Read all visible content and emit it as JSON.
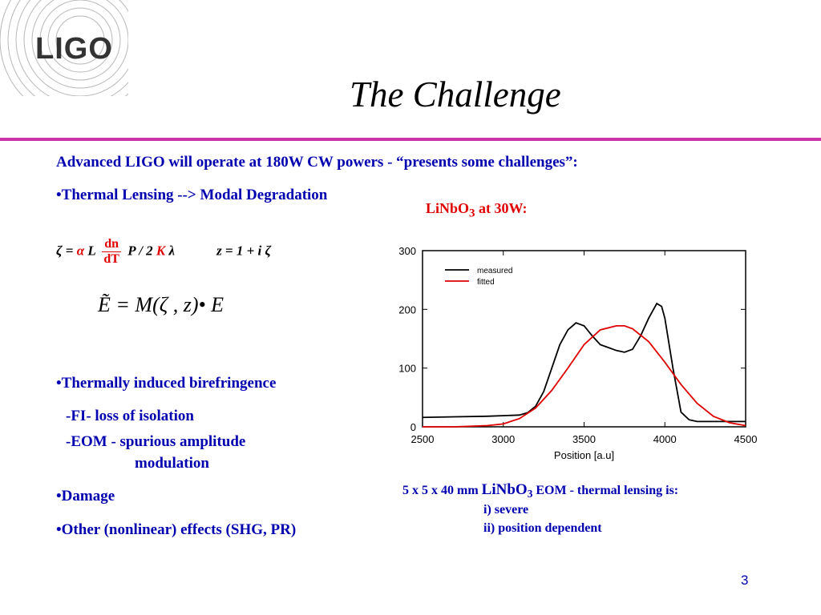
{
  "logo": {
    "text": "LIGO"
  },
  "title": "The Challenge",
  "accent_color": "#cc33aa",
  "text_color_blue": "#0000b0",
  "text_color_red": "#e00000",
  "intro": "Advanced LIGO will operate at 180W CW powers - “presents some challenges”:",
  "bullets": {
    "thermal_lensing": "•Thermal Lensing --> Modal Degradation",
    "birefringence": "•Thermally induced birefringence",
    "fi": "-FI- loss of isolation",
    "eom_line1": "-EOM - spurious amplitude",
    "eom_line2": "modulation",
    "damage": "•Damage",
    "other": "•Other (nonlinear) effects (SHG, PR)"
  },
  "equation1": {
    "lhs": "ζ = ",
    "alpha": "α",
    "L": " L ",
    "frac_num": "dn",
    "frac_den": "dT",
    "mid": " P / 2 ",
    "K": "K",
    "lambda": " λ",
    "z_eq": "z = 1 + i ζ"
  },
  "equation2": "Ẽ = M(ζ , z)• E",
  "plot_heading": {
    "prefix": "LiNbO",
    "sub": "3",
    "suffix": " at 30W:"
  },
  "caption": {
    "prefix": "5 x 5 x 40 mm ",
    "crystal": "LiNbO",
    "sub": "3",
    "suffix": " EOM - thermal lensing is:",
    "item1": "i) severe",
    "item2": "ii)  position dependent"
  },
  "page_number": "3",
  "chart_data": {
    "type": "line",
    "xlabel": "Position [a.u]",
    "ylabel": "",
    "xlim": [
      2500,
      4500
    ],
    "ylim": [
      0,
      300
    ],
    "xticks": [
      2500,
      3000,
      3500,
      4000,
      4500
    ],
    "yticks": [
      0,
      100,
      200,
      300
    ],
    "legend_position": "top-left",
    "grid": false,
    "series": [
      {
        "name": "measured",
        "color": "#000000",
        "x": [
          2500,
          2700,
          2900,
          3100,
          3150,
          3200,
          3250,
          3300,
          3350,
          3400,
          3450,
          3500,
          3550,
          3600,
          3650,
          3700,
          3750,
          3800,
          3850,
          3900,
          3950,
          3980,
          4000,
          4050,
          4100,
          4150,
          4200,
          4300,
          4500
        ],
        "values": [
          16,
          17,
          18,
          20,
          24,
          35,
          60,
          100,
          140,
          165,
          177,
          172,
          155,
          140,
          135,
          130,
          127,
          132,
          155,
          185,
          210,
          205,
          185,
          100,
          25,
          12,
          9,
          9,
          9
        ]
      },
      {
        "name": "fitted",
        "color": "#e00000",
        "x": [
          2500,
          2700,
          2900,
          3000,
          3100,
          3200,
          3300,
          3400,
          3500,
          3600,
          3700,
          3750,
          3800,
          3900,
          4000,
          4100,
          4200,
          4300,
          4400,
          4500
        ],
        "values": [
          0,
          0,
          2,
          5,
          14,
          32,
          62,
          100,
          140,
          165,
          172,
          172,
          167,
          145,
          110,
          72,
          40,
          18,
          7,
          2
        ]
      }
    ]
  }
}
